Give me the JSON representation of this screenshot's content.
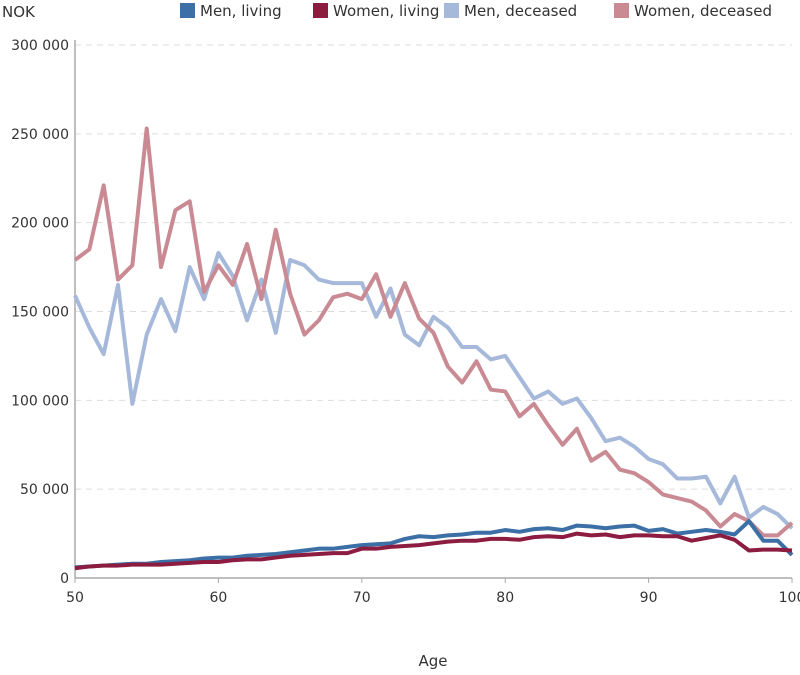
{
  "chart_data": {
    "type": "line",
    "ylabel": "NOK",
    "xlabel": "Age",
    "xlim": [
      50,
      100
    ],
    "ylim": [
      0,
      300000
    ],
    "x_ticks": [
      50,
      60,
      70,
      80,
      90,
      100
    ],
    "y_ticks": [
      0,
      50000,
      100000,
      150000,
      200000,
      250000,
      300000
    ],
    "y_tick_labels": [
      "0",
      "50 000",
      "100 000",
      "150 000",
      "200 000",
      "250 000",
      "300 000"
    ],
    "x_tick_labels": [
      "50",
      "60",
      "70",
      "80",
      "90",
      "100"
    ],
    "grid": "horizontal dashed",
    "legend_placement": "top",
    "x": [
      50,
      51,
      52,
      53,
      54,
      55,
      56,
      57,
      58,
      59,
      60,
      61,
      62,
      63,
      64,
      65,
      66,
      67,
      68,
      69,
      70,
      71,
      72,
      73,
      74,
      75,
      76,
      77,
      78,
      79,
      80,
      81,
      82,
      83,
      84,
      85,
      86,
      87,
      88,
      89,
      90,
      91,
      92,
      93,
      94,
      95,
      96,
      97,
      98,
      99,
      100
    ],
    "series": [
      {
        "name": "Men, living",
        "color": "#3b6fa6",
        "values": [
          6000,
          6500,
          7000,
          7500,
          8000,
          8000,
          9000,
          9500,
          10000,
          11000,
          11500,
          11500,
          12500,
          13000,
          13500,
          14500,
          15500,
          16500,
          16500,
          17500,
          18500,
          19000,
          19500,
          22000,
          23500,
          23000,
          24000,
          24500,
          25500,
          25500,
          27000,
          26000,
          27500,
          28000,
          27000,
          29500,
          29000,
          28000,
          29000,
          29500,
          26500,
          27500,
          25000,
          26000,
          27000,
          26000,
          24500,
          32000,
          21000,
          21000,
          13000
        ]
      },
      {
        "name": "Women, living",
        "color": "#8c1c40",
        "values": [
          5500,
          6500,
          7000,
          7000,
          7500,
          7500,
          7500,
          8000,
          8500,
          9000,
          9000,
          10000,
          10500,
          10500,
          11500,
          12500,
          13000,
          13500,
          14000,
          14000,
          16500,
          16500,
          17500,
          18000,
          18500,
          19500,
          20500,
          21000,
          21000,
          22000,
          22000,
          21500,
          23000,
          23500,
          23000,
          25000,
          24000,
          24500,
          23000,
          24000,
          24000,
          23500,
          23500,
          21000,
          22500,
          24000,
          21500,
          15500,
          16000,
          16000,
          15500
        ]
      },
      {
        "name": "Men, deceased",
        "color": "#a6b9da",
        "values": [
          159000,
          141000,
          126000,
          165000,
          98000,
          137000,
          157000,
          139000,
          175000,
          157000,
          183000,
          170000,
          145000,
          168000,
          138000,
          179000,
          176000,
          168000,
          166000,
          166000,
          166000,
          147000,
          163000,
          137000,
          131000,
          147000,
          141000,
          130000,
          130000,
          123000,
          125000,
          113000,
          101000,
          105000,
          98000,
          101000,
          90000,
          77000,
          79000,
          74000,
          67000,
          64000,
          56000,
          56000,
          57000,
          42000,
          57000,
          34000,
          40000,
          36000,
          28000
        ]
      },
      {
        "name": "Women, deceased",
        "color": "#c98a93",
        "values": [
          179000,
          185000,
          221000,
          168000,
          176000,
          253000,
          175000,
          207000,
          212000,
          161000,
          176000,
          165000,
          188000,
          157000,
          196000,
          160000,
          137000,
          145000,
          158000,
          160000,
          157000,
          171000,
          147000,
          166000,
          146000,
          138000,
          119000,
          110000,
          122000,
          106000,
          105000,
          91000,
          98000,
          86000,
          75000,
          84000,
          66000,
          71000,
          61000,
          59000,
          54000,
          47000,
          45000,
          43000,
          38000,
          29000,
          36000,
          32000,
          24000,
          24000,
          31000
        ]
      }
    ]
  }
}
